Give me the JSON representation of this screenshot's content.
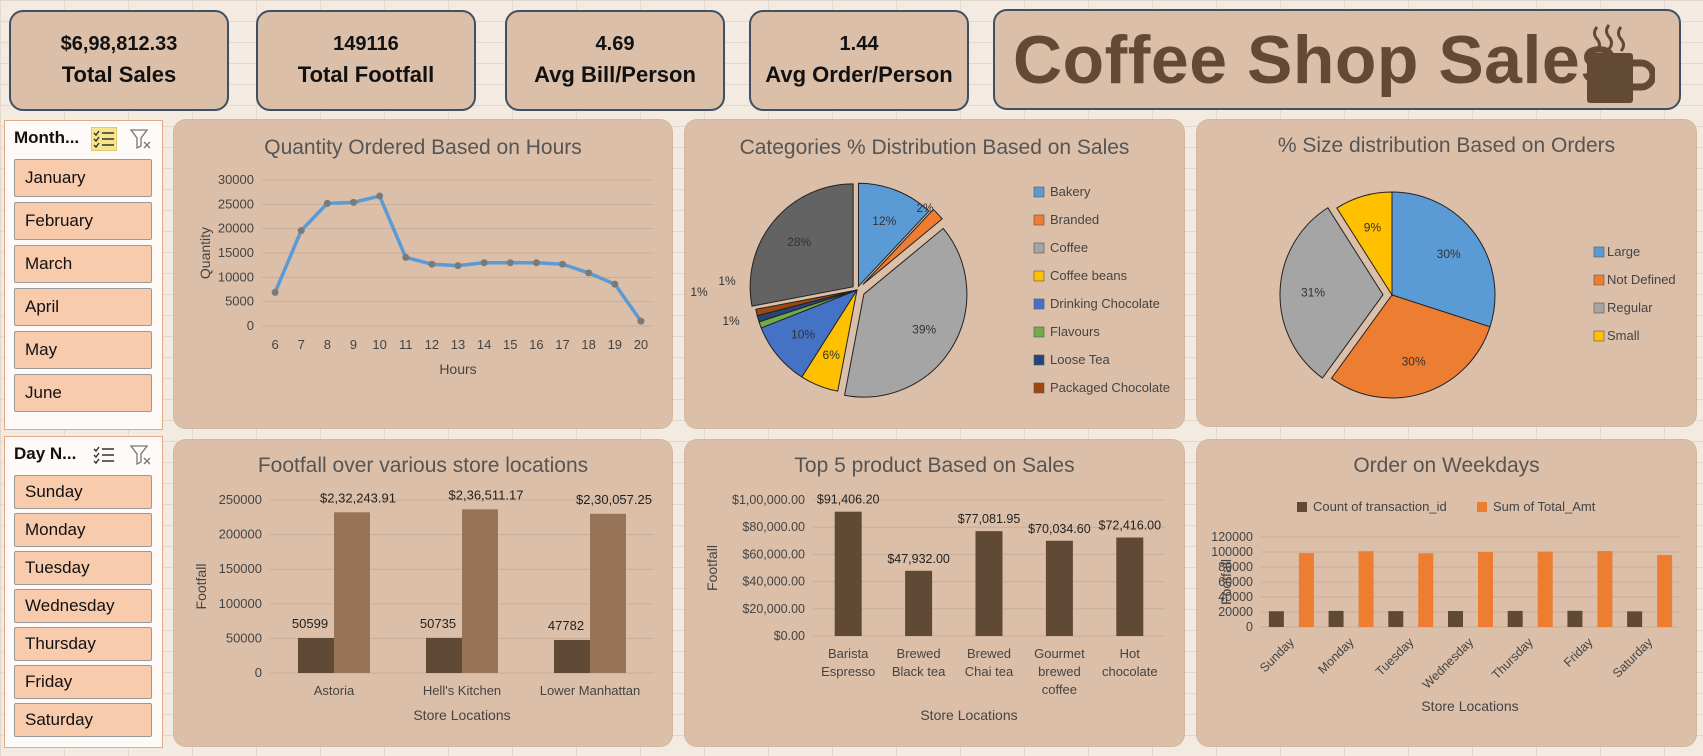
{
  "kpis": [
    {
      "value": "$6,98,812.33",
      "label": "Total Sales"
    },
    {
      "value": "149116",
      "label": "Total Footfall"
    },
    {
      "value": "4.69",
      "label": "Avg Bill/Person"
    },
    {
      "value": "1.44",
      "label": "Avg Order/Person"
    }
  ],
  "dashboard_title": "Coffee Shop Sales",
  "month_slicer": {
    "title": "Month...",
    "items": [
      "January",
      "February",
      "March",
      "April",
      "May",
      "June"
    ]
  },
  "day_slicer": {
    "title": "Day N...",
    "items": [
      "Sunday",
      "Monday",
      "Tuesday",
      "Wednesday",
      "Thursday",
      "Friday",
      "Saturday"
    ]
  },
  "colors": {
    "panel": "#dcbfa9",
    "line": "#5b9bd5",
    "bar_dark": "#614a35",
    "bar_light": "#977358",
    "orange": "#ed7d31"
  },
  "chart_data": [
    {
      "id": "hours",
      "type": "line",
      "title": "Quantity Ordered Based on Hours",
      "xlabel": "Hours",
      "ylabel": "Quantity",
      "ylim": [
        0,
        30000
      ],
      "yticks": [
        0,
        5000,
        10000,
        15000,
        20000,
        25000,
        30000
      ],
      "x": [
        6,
        7,
        8,
        9,
        10,
        11,
        12,
        13,
        14,
        15,
        16,
        17,
        18,
        19,
        20
      ],
      "values": [
        6900,
        19600,
        25200,
        25400,
        26700,
        14100,
        12700,
        12400,
        13000,
        13000,
        13000,
        12700,
        10900,
        8600,
        1000
      ]
    },
    {
      "id": "categories",
      "type": "pie",
      "title": "Categories % Distribution Based on Sales",
      "labels": [
        "Bakery",
        "Branded",
        "Coffee",
        "Coffee beans",
        "Drinking Chocolate",
        "Flavours",
        "Loose Tea",
        "Packaged Chocolate"
      ],
      "values": [
        12,
        2,
        39,
        6,
        10,
        1,
        1,
        1
      ],
      "data_labels": [
        "12%",
        "2%",
        "39%",
        "6%",
        "10%",
        "1%",
        "1%",
        "1%"
      ],
      "extra_slice": {
        "value": 28,
        "label": "28%"
      },
      "colors": [
        "#5b9bd5",
        "#ed7d31",
        "#a5a5a5",
        "#ffc000",
        "#4472c4",
        "#70ad47",
        "#264478",
        "#9e480e"
      ],
      "extra_color": "#636363",
      "legend": "right"
    },
    {
      "id": "sizes",
      "type": "pie",
      "title": "% Size distribution Based on Orders",
      "labels": [
        "Large",
        "Not Defined",
        "Regular",
        "Small"
      ],
      "values": [
        30,
        30,
        31,
        9
      ],
      "data_labels": [
        "30%",
        "30%",
        "31%",
        "9%"
      ],
      "colors": [
        "#5b9bd5",
        "#ed7d31",
        "#a5a5a5",
        "#ffc000"
      ],
      "legend": "right"
    },
    {
      "id": "stores",
      "type": "bar",
      "title": "Footfall over various store locations",
      "xlabel": "Store Locations",
      "ylabel": "Footfall",
      "ylim": [
        0,
        250000
      ],
      "yticks": [
        0,
        50000,
        100000,
        150000,
        200000,
        250000
      ],
      "categories": [
        "Astoria",
        "Hell's Kitchen",
        "Lower Manhattan"
      ],
      "series": [
        {
          "values": [
            50599,
            50735,
            47782
          ],
          "labels": [
            "50599",
            "50735",
            "47782"
          ]
        },
        {
          "values": [
            232243.91,
            236511.17,
            230057.25
          ],
          "labels": [
            "$2,32,243.91",
            "$2,36,511.17",
            "$2,30,057.25"
          ]
        }
      ]
    },
    {
      "id": "products",
      "type": "bar",
      "title": "Top 5 product Based on Sales",
      "xlabel": "Store Locations",
      "ylabel": "Footfall",
      "ylim": [
        0,
        100000
      ],
      "yticks": [
        0,
        20000,
        40000,
        60000,
        80000,
        100000
      ],
      "ytick_labels": [
        "$0.00",
        "$20,000.00",
        "$40,000.00",
        "$60,000.00",
        "$80,000.00",
        "$1,00,000.00"
      ],
      "categories": [
        [
          "Barista",
          "Espresso"
        ],
        [
          "Brewed",
          "Black tea"
        ],
        [
          "Brewed",
          "Chai tea"
        ],
        [
          "Gourmet",
          "brewed",
          "coffee"
        ],
        [
          "Hot",
          "chocolate"
        ]
      ],
      "values": [
        91406.2,
        47932.0,
        77081.95,
        70034.6,
        72416.0
      ],
      "data_labels": [
        "$91,406.20",
        "$47,932.00",
        "$77,081.95",
        "$70,034.60",
        "$72,416.00"
      ]
    },
    {
      "id": "weekdays",
      "type": "bar",
      "title": "Order on Weekdays",
      "xlabel": "Store Locations",
      "ylabel": "Footfall",
      "ylim": [
        0,
        120000
      ],
      "yticks": [
        0,
        20000,
        40000,
        60000,
        80000,
        100000,
        120000
      ],
      "categories": [
        "Sunday",
        "Monday",
        "Tuesday",
        "Wednesday",
        "Thursday",
        "Friday",
        "Saturday"
      ],
      "series": [
        {
          "name": "Count of transaction_id",
          "values": [
            21000,
            21500,
            21200,
            21300,
            21400,
            21600,
            20900
          ]
        },
        {
          "name": "Sum of Total_Amt",
          "values": [
            98500,
            101000,
            98300,
            100000,
            100400,
            101200,
            96000
          ]
        }
      ],
      "legend": "top"
    }
  ]
}
